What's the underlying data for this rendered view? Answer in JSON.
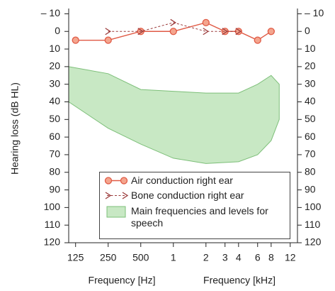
{
  "chart_data": {
    "type": "line",
    "x_scale": "log",
    "y_inverted": true,
    "xlim": [
      108,
      14000
    ],
    "ylim": [
      -13,
      120
    ],
    "xticks": [
      125,
      250,
      500,
      {
        "value": 1000,
        "label": "1"
      },
      {
        "value": 2000,
        "label": "2"
      },
      {
        "value": 3000,
        "label": "3"
      },
      {
        "value": 4000,
        "label": "4"
      },
      {
        "value": 6000,
        "label": "6"
      },
      {
        "value": 8000,
        "label": "8"
      },
      {
        "value": 12000,
        "label": "12"
      }
    ],
    "yticks": [
      {
        "value": -10,
        "label": "– 10"
      },
      0,
      10,
      20,
      30,
      40,
      50,
      60,
      70,
      80,
      90,
      100,
      110,
      120
    ],
    "ylabel": "Hearing loss (dB HL)",
    "xlabel_hz": "Frequency [Hz]",
    "xlabel_khz": "Frequency [kHz]",
    "legend": "lower right",
    "series": [
      {
        "name": "Air conduction right ear",
        "color": "#e05a45",
        "marker": "circle",
        "dashed": false,
        "x": [
          125,
          250,
          500,
          1000,
          2000,
          3000,
          4000,
          6000,
          8000
        ],
        "values": [
          5,
          5,
          0,
          0,
          -5,
          0,
          0,
          5,
          0
        ]
      },
      {
        "name": "Bone conduction right ear",
        "color": "#9b3a3a",
        "marker": "chevron",
        "dashed": true,
        "x": [
          250,
          500,
          1000,
          2000,
          3000,
          4000
        ],
        "values": [
          0,
          0,
          -5,
          0,
          0,
          0
        ]
      }
    ],
    "area": {
      "name": "Main frequencies and levels for speech",
      "color": "#c8e8c4",
      "edge_color": "#7dbf79",
      "x": [
        108,
        250,
        500,
        1000,
        2000,
        4000,
        6000,
        8000,
        9500,
        9500,
        8000,
        6000,
        4000,
        2000,
        1000,
        500,
        250,
        108
      ],
      "values": [
        20,
        24,
        33,
        34,
        35,
        35,
        30,
        25,
        30,
        50,
        62,
        70,
        74,
        75,
        72,
        64,
        55,
        40
      ]
    }
  }
}
